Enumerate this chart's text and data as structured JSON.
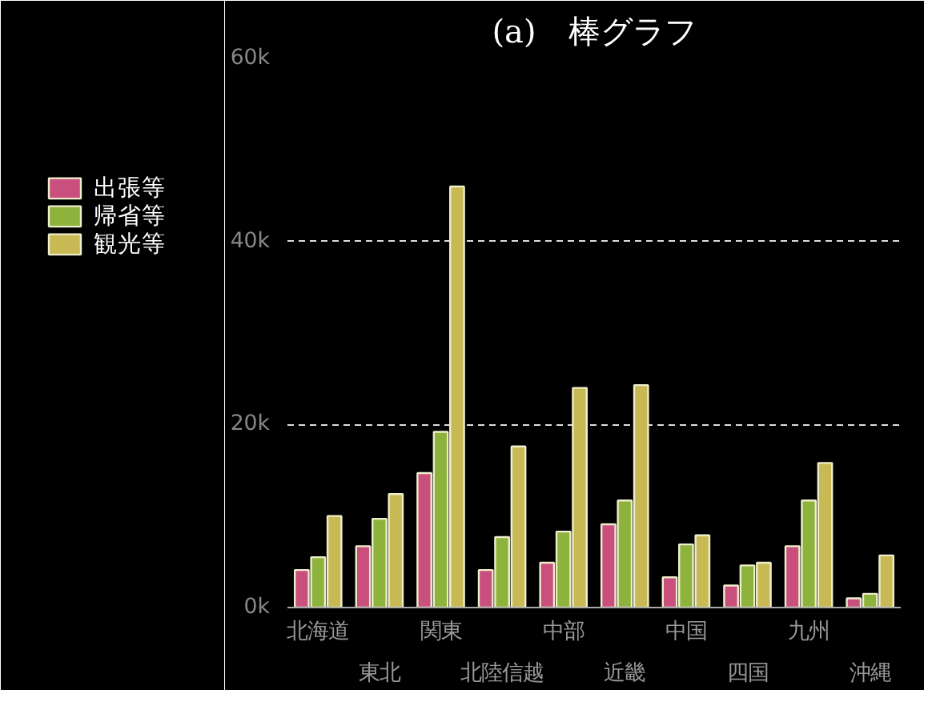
{
  "chart_data": {
    "type": "bar",
    "title": "(a)　棒グラフ",
    "categories": [
      "北海道",
      "東北",
      "関東",
      "北陸信越",
      "中部",
      "近畿",
      "中国",
      "四国",
      "九州",
      "沖縄"
    ],
    "series": [
      {
        "name": "出張等",
        "color": "#c9507c",
        "values": [
          4100,
          6700,
          14700,
          4100,
          4900,
          9100,
          3300,
          2400,
          6700,
          1000
        ]
      },
      {
        "name": "帰省等",
        "color": "#8db33c",
        "values": [
          5500,
          9700,
          19200,
          7700,
          8300,
          11700,
          6900,
          4600,
          11700,
          1500
        ]
      },
      {
        "name": "観光等",
        "color": "#c9b955",
        "values": [
          10000,
          12400,
          46000,
          17600,
          24000,
          24300,
          7900,
          4900,
          15800,
          5700
        ]
      }
    ],
    "ylim": [
      0,
      60000
    ],
    "yticks": [
      {
        "value": 0,
        "label": "0k"
      },
      {
        "value": 20000,
        "label": "20k"
      },
      {
        "value": 40000,
        "label": "40k"
      },
      {
        "value": 60000,
        "label": "60k"
      }
    ],
    "grid": "y",
    "legend": "left"
  }
}
